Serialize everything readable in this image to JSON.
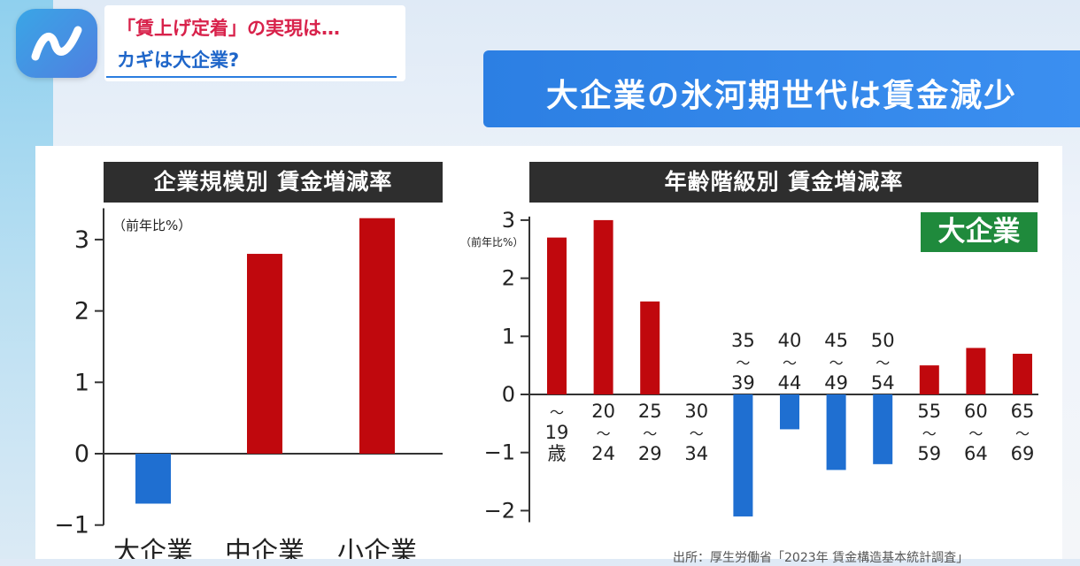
{
  "topic": {
    "line1": "「賃上げ定着」の実現は…",
    "line2": "カギは大企業?"
  },
  "headline": "大企業の氷河期世代は賃金減少",
  "source_text": "出所：厚生労働省「2023年 賃金構造基本統計調査」",
  "colors": {
    "positive": "#c0080d",
    "negative": "#1f6fd1",
    "tag_bg": "#1f8a3c"
  },
  "chart_data": [
    {
      "type": "bar",
      "title": "企業規模別 賃金増減率",
      "unit_label": "（前年比%）",
      "categories": [
        "大企業",
        "中企業",
        "小企業"
      ],
      "values": [
        -0.7,
        2.8,
        3.3
      ],
      "ylim": [
        -1,
        3.5
      ],
      "yticks": [
        "−1",
        "0",
        "1",
        "2",
        "3"
      ],
      "grid": false,
      "legend": "none"
    },
    {
      "type": "bar",
      "title": "年齢階級別 賃金増減率",
      "tag": "大企業",
      "unit_label": "（前年比%）",
      "categories": [
        [
          "〜",
          "19",
          "歳"
        ],
        [
          "20",
          "〜",
          "24"
        ],
        [
          "25",
          "〜",
          "29"
        ],
        [
          "30",
          "〜",
          "34"
        ],
        [
          "35",
          "〜",
          "39"
        ],
        [
          "40",
          "〜",
          "44"
        ],
        [
          "45",
          "〜",
          "49"
        ],
        [
          "50",
          "〜",
          "54"
        ],
        [
          "55",
          "〜",
          "59"
        ],
        [
          "60",
          "〜",
          "64"
        ],
        [
          "65",
          "〜",
          "69"
        ]
      ],
      "values": [
        2.7,
        3.0,
        1.6,
        0.0,
        -2.1,
        -0.6,
        -1.3,
        -1.2,
        0.5,
        0.8,
        0.7
      ],
      "ylim": [
        -2.2,
        3.2
      ],
      "yticks": [
        "−2",
        "−1",
        "0",
        "1",
        "2",
        "3"
      ],
      "grid": false,
      "legend": "none"
    }
  ]
}
